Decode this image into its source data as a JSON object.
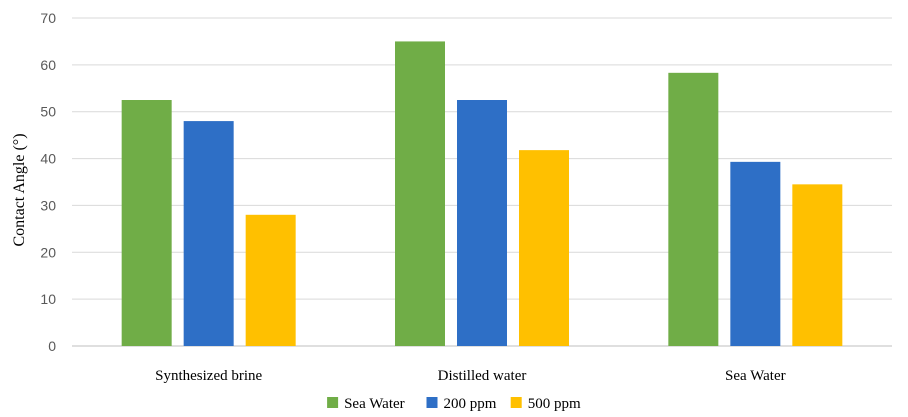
{
  "chart_data": {
    "type": "bar",
    "categories": [
      "Synthesized brine",
      "Distilled water",
      "Sea Water"
    ],
    "series": [
      {
        "name": "Sea Water",
        "values": [
          52.5,
          65.0,
          58.3
        ],
        "color": "#70AD47"
      },
      {
        "name": "200 ppm",
        "values": [
          48.0,
          52.5,
          39.3
        ],
        "color": "#2E6FC6"
      },
      {
        "name": "500 ppm",
        "values": [
          28.0,
          41.8,
          34.5
        ],
        "color": "#FFC000"
      }
    ],
    "title": "",
    "xlabel": "",
    "ylabel": "Contact Angle (°)",
    "ylim": [
      0,
      70
    ],
    "yticks": [
      0,
      10,
      20,
      30,
      40,
      50,
      60,
      70
    ],
    "grid": true,
    "legend_position": "bottom"
  }
}
